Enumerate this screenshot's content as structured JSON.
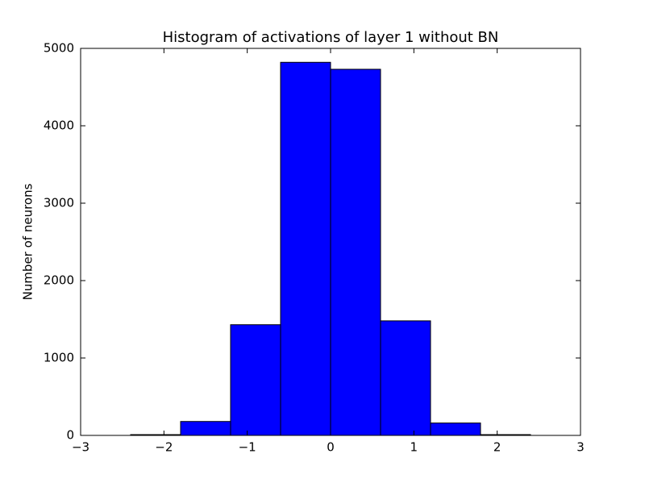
{
  "chart_data": {
    "type": "histogram",
    "title": "Histogram of activations of layer 1  without BN",
    "y_label": "Number of neurons",
    "bins": [
      -2.4,
      -1.8,
      -1.2,
      -0.6,
      0,
      0.6,
      1.2,
      1.8,
      2.4
    ],
    "values": [
      10,
      180,
      1430,
      4820,
      4730,
      1480,
      160,
      10
    ],
    "color": "#0000ff",
    "xlim": [
      -3,
      3
    ],
    "xticks": [
      {
        "value": -3,
        "label": "−3"
      },
      {
        "value": -2,
        "label": "−2"
      },
      {
        "value": -1,
        "label": "−1"
      },
      0,
      1,
      2,
      3
    ],
    "ylim": [
      0,
      5000
    ],
    "yticks": [
      0,
      1000,
      2000,
      3000,
      4000,
      5000
    ]
  }
}
